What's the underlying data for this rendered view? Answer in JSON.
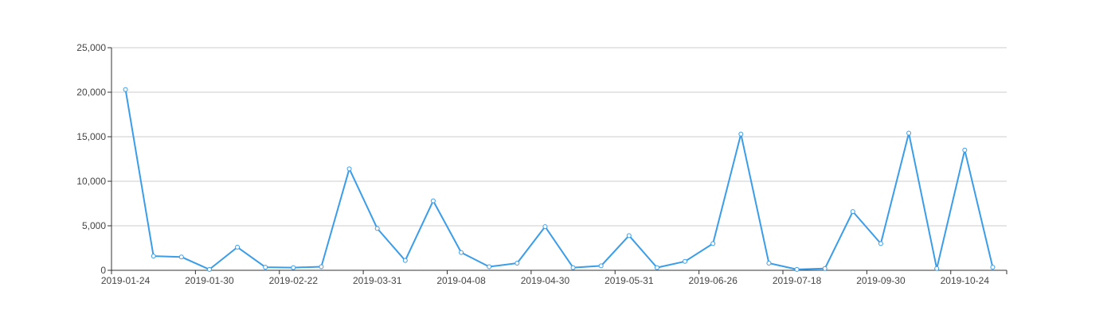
{
  "chart_data": {
    "type": "line",
    "title": "",
    "xlabel": "",
    "ylabel": "",
    "ylim": [
      0,
      25000
    ],
    "yticks": [
      0,
      5000,
      10000,
      15000,
      20000,
      25000
    ],
    "ytick_labels": [
      "0",
      "5,000",
      "10,000",
      "15,000",
      "20,000",
      "25,000"
    ],
    "xtick_labels": [
      "2019-01-24",
      "2019-01-30",
      "2019-02-22",
      "2019-03-31",
      "2019-04-08",
      "2019-04-30",
      "2019-05-31",
      "2019-06-26",
      "2019-07-18",
      "2019-09-30",
      "2019-10-24"
    ],
    "grid": true,
    "legend": "none",
    "colors": {
      "line": "#3a9de9",
      "grid": "#cccccc",
      "axis": "#333333"
    },
    "series": [
      {
        "values": [
          20300,
          1600,
          1500,
          100,
          2600,
          350,
          300,
          400,
          11400,
          4700,
          1100,
          7800,
          2000,
          400,
          800,
          4900,
          300,
          500,
          3900,
          300,
          1000,
          3000,
          15300,
          800,
          100,
          200,
          6600,
          3000,
          15400,
          200,
          13500,
          350
        ]
      }
    ]
  }
}
